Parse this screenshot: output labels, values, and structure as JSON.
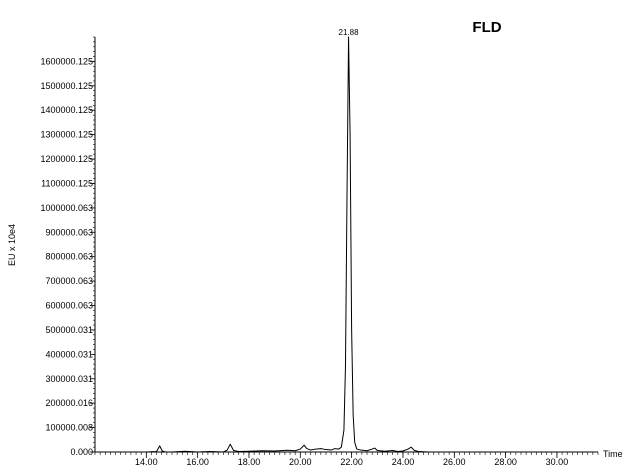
{
  "chart_data": {
    "type": "line",
    "title": "FLD",
    "xlabel": "Time",
    "ylabel": "EU x 10e4",
    "xlim": [
      12.0,
      31.6
    ],
    "ylim": [
      0,
      1700000
    ],
    "x_ticks": [
      14,
      16,
      18,
      20,
      22,
      24,
      26,
      28,
      30
    ],
    "x_tick_labels": [
      "14.00",
      "16.00",
      "18.00",
      "20.00",
      "22.00",
      "24.00",
      "26.00",
      "28.00",
      "30.00"
    ],
    "y_ticks": [
      0,
      100000,
      200000,
      300000,
      400000,
      500000,
      600000,
      700000,
      800000,
      900000,
      1000000,
      1100000,
      1200000,
      1300000,
      1400000,
      1500000,
      1600000
    ],
    "y_tick_labels": [
      "0.000",
      "100000.008",
      "200000.016",
      "300000.031",
      "400000.031",
      "500000.031",
      "600000.063",
      "700000.063",
      "800000.063",
      "900000.063",
      "1000000.063",
      "1100000.125",
      "1200000.125",
      "1300000.125",
      "1400000.125",
      "1500000.125",
      "1600000.125"
    ],
    "annotations": [
      {
        "text": "21.88",
        "x": 21.88,
        "y": 1700000
      }
    ],
    "grid": false,
    "series": [
      {
        "x": [
          12.0,
          13.0,
          14.0,
          14.4,
          14.52,
          14.62,
          14.75,
          15.0,
          15.5,
          16.0,
          16.5,
          17.0,
          17.15,
          17.27,
          17.4,
          17.6,
          18.0,
          18.5,
          19.0,
          19.5,
          19.8,
          20.0,
          20.15,
          20.25,
          20.4,
          20.6,
          20.8,
          21.0,
          21.2,
          21.35,
          21.5,
          21.6,
          21.7,
          21.76,
          21.82,
          21.88,
          21.94,
          22.0,
          22.06,
          22.12,
          22.2,
          22.35,
          22.6,
          22.8,
          22.9,
          23.0,
          23.3,
          23.6,
          23.8,
          24.0,
          24.2,
          24.32,
          24.45,
          24.6,
          25.0,
          26.0,
          27.0,
          28.0,
          29.0,
          30.0,
          31.0,
          31.5
        ],
        "y": [
          0,
          0,
          0,
          2000,
          25000,
          4000,
          0,
          0,
          3000,
          0,
          2000,
          0,
          8000,
          32000,
          6000,
          2000,
          3000,
          5000,
          4000,
          7000,
          5000,
          12000,
          28000,
          14000,
          8000,
          12000,
          14000,
          10000,
          8000,
          14000,
          12000,
          20000,
          90000,
          350000,
          1050000,
          1700000,
          1300000,
          500000,
          150000,
          40000,
          12000,
          8000,
          5000,
          12000,
          16000,
          6000,
          3000,
          6000,
          2000,
          4000,
          12000,
          20000,
          6000,
          2000,
          0,
          0,
          0,
          0,
          0,
          0,
          0,
          0
        ]
      }
    ]
  }
}
